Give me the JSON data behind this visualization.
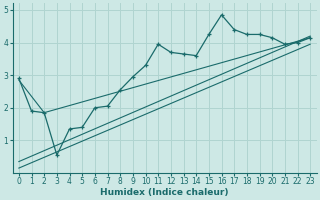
{
  "xlabel": "Humidex (Indice chaleur)",
  "ylabel": "",
  "xlim": [
    -0.5,
    23.5
  ],
  "ylim": [
    0,
    5.2
  ],
  "xticks": [
    0,
    1,
    2,
    3,
    4,
    5,
    6,
    7,
    8,
    9,
    10,
    11,
    12,
    13,
    14,
    15,
    16,
    17,
    18,
    19,
    20,
    21,
    22,
    23
  ],
  "yticks": [
    1,
    2,
    3,
    4,
    5
  ],
  "bg_color": "#cde8e5",
  "grid_color": "#b0d4d0",
  "line_color": "#1a6b6b",
  "line1_x": [
    0,
    1,
    2,
    3,
    4,
    5,
    6,
    7,
    8,
    9,
    10,
    11,
    12,
    13,
    14,
    15,
    16,
    17,
    18,
    19,
    20,
    21,
    22,
    23
  ],
  "line1_y": [
    2.9,
    1.9,
    1.85,
    0.55,
    1.35,
    1.4,
    2.0,
    2.05,
    2.55,
    2.95,
    3.3,
    3.95,
    3.7,
    3.65,
    3.6,
    4.25,
    4.85,
    4.4,
    4.25,
    4.25,
    4.15,
    3.95,
    4.0,
    4.15
  ],
  "line2_x": [
    0,
    2,
    23
  ],
  "line2_y": [
    2.85,
    1.85,
    4.15
  ],
  "line3_x": [
    0,
    23
  ],
  "line3_y": [
    0.35,
    4.2
  ],
  "line4_x": [
    0,
    23
  ],
  "line4_y": [
    0.15,
    3.95
  ]
}
